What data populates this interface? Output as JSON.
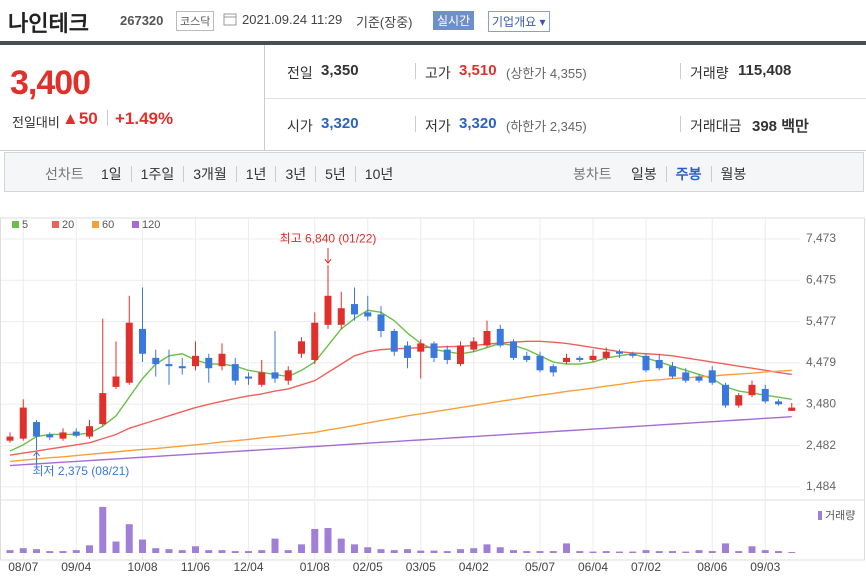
{
  "header": {
    "name": "나인테크",
    "code": "267320",
    "market": "코스닥",
    "datetime": "2021.09.24 11:29",
    "basis": "기준(장중)",
    "realtime": "실시간",
    "overview": "기업개요"
  },
  "quote": {
    "price": "3,400",
    "change_label": "전일대비",
    "change": "50",
    "change_pct": "+1.49%"
  },
  "stats": [
    {
      "label": "전일",
      "value": "3,350"
    },
    {
      "label": "고가",
      "value": "3,510",
      "note": "(상한가 4,355)"
    },
    {
      "label": "거래량",
      "value": "115,408"
    },
    {
      "label": "시가",
      "value": "3,320"
    },
    {
      "label": "저가",
      "value": "3,320",
      "note": "(하한가 2,345)"
    },
    {
      "label": "거래대금",
      "value": "398 백만"
    }
  ],
  "tabs": {
    "line": {
      "label": "선차트",
      "items": [
        "1일",
        "1주일",
        "3개월",
        "1년",
        "3년",
        "5년",
        "10년"
      ]
    },
    "candle": {
      "label": "봉차트",
      "items": [
        "일봉",
        "주봉",
        "월봉"
      ],
      "selected": 1
    }
  },
  "chart_data": {
    "type": "candlestick",
    "categories": [
      null,
      "08/07",
      null,
      null,
      null,
      "09/04",
      null,
      null,
      null,
      null,
      "10/08",
      null,
      null,
      null,
      "11/06",
      null,
      null,
      null,
      "12/04",
      null,
      null,
      null,
      null,
      "01/08",
      null,
      null,
      null,
      "02/05",
      null,
      null,
      null,
      "03/05",
      null,
      null,
      null,
      "04/02",
      null,
      null,
      null,
      null,
      "05/07",
      null,
      null,
      null,
      "06/04",
      null,
      null,
      null,
      "07/02",
      null,
      null,
      null,
      null,
      "08/06",
      null,
      null,
      null,
      "09/03",
      null,
      null
    ],
    "open": [
      2600,
      2650,
      3050,
      2750,
      2650,
      2820,
      2700,
      3000,
      3900,
      4000,
      5300,
      4600,
      4450,
      4400,
      4400,
      4600,
      4400,
      4450,
      4150,
      3950,
      4250,
      4050,
      4700,
      4550,
      5400,
      5400,
      5900,
      5700,
      5650,
      5250,
      4900,
      4750,
      4950,
      4800,
      4450,
      4800,
      4900,
      5300,
      5000,
      4650,
      4650,
      4400,
      4500,
      4600,
      4550,
      4600,
      4750,
      4700,
      4650,
      4550,
      4400,
      4250,
      4150,
      4300,
      3950,
      3450,
      3700,
      3850,
      3550,
      3320
    ],
    "high": [
      2800,
      3600,
      3100,
      2800,
      2900,
      2900,
      3100,
      5550,
      5000,
      6100,
      6300,
      4800,
      4800,
      4600,
      5000,
      4700,
      4950,
      4600,
      4250,
      4550,
      5250,
      4400,
      5100,
      5700,
      6840,
      6200,
      6300,
      6100,
      5850,
      5300,
      5000,
      5050,
      5000,
      4900,
      5000,
      5100,
      5500,
      5400,
      5050,
      4750,
      4750,
      4450,
      4700,
      4650,
      4800,
      4850,
      4800,
      4750,
      4700,
      4700,
      4500,
      4350,
      4200,
      4400,
      4000,
      3750,
      4050,
      3950,
      3600,
      3510
    ],
    "low": [
      2550,
      2600,
      2375,
      2620,
      2600,
      2680,
      2650,
      2950,
      3850,
      3950,
      4500,
      4150,
      3950,
      4200,
      4300,
      4000,
      4300,
      3950,
      3950,
      3900,
      4000,
      3950,
      4600,
      4450,
      5300,
      5300,
      5500,
      5500,
      5100,
      4650,
      4350,
      4100,
      4500,
      4450,
      4400,
      4750,
      4850,
      4850,
      4550,
      4500,
      4250,
      4150,
      4450,
      4500,
      4500,
      4550,
      4600,
      4600,
      4250,
      4300,
      4100,
      4000,
      4000,
      3950,
      3400,
      3400,
      3650,
      3500,
      3450,
      3320
    ],
    "close": [
      2700,
      3400,
      2700,
      2680,
      2800,
      2720,
      2950,
      3750,
      4150,
      5450,
      4700,
      4450,
      4400,
      4350,
      4650,
      4350,
      4700,
      4050,
      4100,
      4250,
      4100,
      4300,
      5000,
      5450,
      6100,
      5800,
      5650,
      5600,
      5250,
      4750,
      4600,
      4950,
      4600,
      4550,
      4900,
      5000,
      5250,
      4900,
      4600,
      4550,
      4300,
      4250,
      4600,
      4550,
      4650,
      4750,
      4700,
      4650,
      4300,
      4350,
      4150,
      4050,
      4050,
      4000,
      3450,
      3700,
      3950,
      3550,
      3480,
      3400
    ],
    "up_color": "#e0302b",
    "down_color": "#3a78de",
    "series": [
      {
        "name": "5",
        "color": "#6cbf4a",
        "values": [
          2350,
          2500,
          2700,
          2750,
          2750,
          2750,
          2780,
          2950,
          3200,
          3650,
          4100,
          4450,
          4650,
          4700,
          4550,
          4450,
          4450,
          4400,
          4300,
          4250,
          4200,
          4150,
          4300,
          4500,
          4900,
          5300,
          5550,
          5750,
          5700,
          5500,
          5200,
          4950,
          4800,
          4750,
          4700,
          4750,
          4850,
          4950,
          4900,
          4800,
          4650,
          4500,
          4450,
          4450,
          4500,
          4600,
          4650,
          4700,
          4600,
          4500,
          4400,
          4300,
          4200,
          4100,
          3900,
          3800,
          3750,
          3700,
          3650,
          3600
        ]
      },
      {
        "name": "20",
        "color": "#f0605a",
        "values": [
          2250,
          2300,
          2350,
          2400,
          2450,
          2500,
          2550,
          2650,
          2750,
          2900,
          3000,
          3100,
          3200,
          3300,
          3400,
          3480,
          3550,
          3620,
          3680,
          3730,
          3800,
          3850,
          3950,
          4050,
          4250,
          4450,
          4650,
          4750,
          4800,
          4820,
          4830,
          4850,
          4860,
          4870,
          4880,
          4900,
          4930,
          4960,
          4980,
          5000,
          5000,
          4980,
          4950,
          4900,
          4850,
          4800,
          4750,
          4720,
          4700,
          4680,
          4650,
          4600,
          4550,
          4500,
          4450,
          4400,
          4350,
          4300,
          4250,
          4200
        ]
      },
      {
        "name": "60",
        "color": "#f6a03c",
        "values": [
          2100,
          2130,
          2160,
          2190,
          2210,
          2240,
          2270,
          2300,
          2330,
          2360,
          2390,
          2410,
          2440,
          2470,
          2500,
          2530,
          2570,
          2600,
          2630,
          2670,
          2700,
          2730,
          2770,
          2800,
          2860,
          2910,
          2970,
          3030,
          3090,
          3140,
          3200,
          3250,
          3300,
          3350,
          3400,
          3450,
          3500,
          3550,
          3600,
          3650,
          3700,
          3740,
          3790,
          3830,
          3870,
          3920,
          3960,
          4010,
          4050,
          4070,
          4100,
          4120,
          4140,
          4160,
          4190,
          4210,
          4230,
          4260,
          4280,
          4300
        ]
      },
      {
        "name": "120",
        "color": "#a86ad6",
        "values": [
          2000,
          2020,
          2040,
          2060,
          2080,
          2100,
          2120,
          2140,
          2160,
          2180,
          2200,
          2220,
          2240,
          2260,
          2280,
          2300,
          2320,
          2340,
          2360,
          2380,
          2400,
          2420,
          2440,
          2460,
          2480,
          2500,
          2520,
          2540,
          2560,
          2580,
          2600,
          2620,
          2640,
          2660,
          2680,
          2700,
          2720,
          2740,
          2760,
          2780,
          2800,
          2820,
          2840,
          2860,
          2880,
          2900,
          2920,
          2940,
          2960,
          2980,
          3000,
          3020,
          3040,
          3060,
          3080,
          3100,
          3120,
          3140,
          3160,
          3180
        ]
      }
    ],
    "annotations": [
      {
        "text": "최고 6,840 (01/22)",
        "color": "#e0302b"
      },
      {
        "text": "최저 2,375 (08/21)",
        "color": "#3a78de"
      }
    ],
    "ylim": [
      1240,
      7810
    ],
    "yticks": [
      {
        "value": 1484,
        "label": "1,484"
      },
      {
        "value": 2482,
        "label": "2,482"
      },
      {
        "value": 3480,
        "label": "3,480"
      },
      {
        "value": 4479,
        "label": "4,479"
      },
      {
        "value": 5477,
        "label": "5,477"
      },
      {
        "value": 6475,
        "label": "6,475"
      },
      {
        "value": 7473,
        "label": "7,473"
      }
    ],
    "grid": true,
    "volume": {
      "name": "거래량",
      "color": "#a07fd8",
      "ylim": [
        0,
        5000000
      ],
      "values": [
        300000,
        500000,
        400000,
        200000,
        200000,
        300000,
        800000,
        4800000,
        1200000,
        3000000,
        1400000,
        500000,
        400000,
        300000,
        700000,
        300000,
        300000,
        200000,
        200000,
        300000,
        1500000,
        300000,
        900000,
        2500000,
        2600000,
        1500000,
        900000,
        600000,
        400000,
        300000,
        400000,
        250000,
        250000,
        200000,
        400000,
        500000,
        900000,
        600000,
        300000,
        200000,
        200000,
        200000,
        1000000,
        200000,
        150000,
        200000,
        150000,
        150000,
        300000,
        200000,
        200000,
        150000,
        300000,
        200000,
        1000000,
        200000,
        700000,
        300000,
        200000,
        100000
      ]
    }
  }
}
